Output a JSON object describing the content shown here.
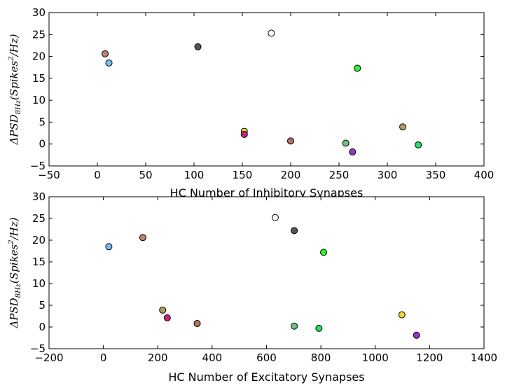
{
  "chart_data": [
    {
      "type": "scatter",
      "xlabel": "HC Number of Inhibitory Synapses",
      "ylabel": "ΔPSD8Hz(Spikes²/Hz)",
      "xlim": [
        -50,
        400
      ],
      "ylim": [
        -5,
        30
      ],
      "xticks": [
        "−50",
        "0",
        "50",
        "100",
        "150",
        "200",
        "250",
        "300",
        "350",
        "400"
      ],
      "yticks": [
        "−5",
        "0",
        "5",
        "10",
        "15",
        "20",
        "25",
        "30"
      ],
      "points": [
        {
          "x": 8,
          "y": 20.6,
          "color": "#c08070"
        },
        {
          "x": 12,
          "y": 18.5,
          "color": "#74bff0"
        },
        {
          "x": 104,
          "y": 22.2,
          "color": "#555555"
        },
        {
          "x": 152,
          "y": 2.9,
          "color": "#e8d830"
        },
        {
          "x": 152,
          "y": 2.2,
          "color": "#cc2277"
        },
        {
          "x": 180,
          "y": 25.3,
          "color": "#ffffff"
        },
        {
          "x": 200,
          "y": 0.7,
          "color": "#b87060"
        },
        {
          "x": 257,
          "y": 0.2,
          "color": "#6cc080"
        },
        {
          "x": 264,
          "y": -1.8,
          "color": "#9933cc"
        },
        {
          "x": 269,
          "y": 17.3,
          "color": "#33ee33"
        },
        {
          "x": 316,
          "y": 3.9,
          "color": "#b0a060"
        },
        {
          "x": 332,
          "y": -0.2,
          "color": "#22dd66"
        }
      ]
    },
    {
      "type": "scatter",
      "xlabel": "HC Number of Excitatory Synapses",
      "ylabel": "ΔPSD8Hz(Spikes²/Hz)",
      "xlim": [
        -200,
        1400
      ],
      "ylim": [
        -5,
        30
      ],
      "xticks": [
        "−200",
        "0",
        "200",
        "400",
        "600",
        "800",
        "1000",
        "1200",
        "1400"
      ],
      "yticks": [
        "−5",
        "0",
        "5",
        "10",
        "15",
        "20",
        "25",
        "30"
      ],
      "points": [
        {
          "x": 20,
          "y": 18.5,
          "color": "#74bff0"
        },
        {
          "x": 145,
          "y": 20.6,
          "color": "#c08070"
        },
        {
          "x": 218,
          "y": 3.9,
          "color": "#b0a060"
        },
        {
          "x": 235,
          "y": 2.1,
          "color": "#cc2277"
        },
        {
          "x": 345,
          "y": 0.8,
          "color": "#b87060"
        },
        {
          "x": 632,
          "y": 25.2,
          "color": "#ffffff"
        },
        {
          "x": 702,
          "y": 22.2,
          "color": "#555555"
        },
        {
          "x": 702,
          "y": 0.2,
          "color": "#6cc080"
        },
        {
          "x": 793,
          "y": -0.3,
          "color": "#22dd66"
        },
        {
          "x": 810,
          "y": 17.2,
          "color": "#33ee33"
        },
        {
          "x": 1098,
          "y": 2.8,
          "color": "#e8d830"
        },
        {
          "x": 1152,
          "y": -1.9,
          "color": "#9933cc"
        }
      ]
    }
  ]
}
